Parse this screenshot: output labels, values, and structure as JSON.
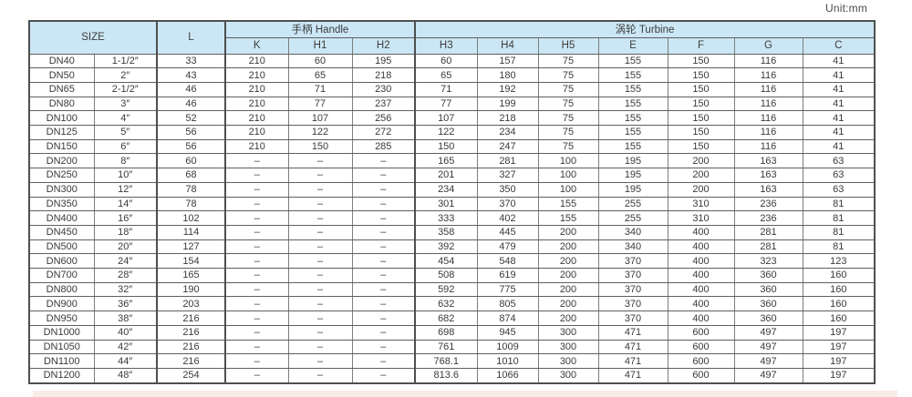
{
  "page": {
    "unit_label": "Unit:mm"
  },
  "table": {
    "header": {
      "size": "SIZE",
      "l": "L",
      "handle_group": "手柄 Handle",
      "turbine_group": "涡轮 Turbine",
      "handle_cols": [
        "K",
        "H1",
        "H2"
      ],
      "turbine_cols": [
        "H3",
        "H4",
        "H5",
        "E",
        "F",
        "G",
        "C"
      ]
    },
    "rows": [
      [
        "DN40",
        "1-1/2″",
        "33",
        "210",
        "60",
        "195",
        "60",
        "157",
        "75",
        "155",
        "150",
        "116",
        "41"
      ],
      [
        "DN50",
        "2″",
        "43",
        "210",
        "65",
        "218",
        "65",
        "180",
        "75",
        "155",
        "150",
        "116",
        "41"
      ],
      [
        "DN65",
        "2-1/2″",
        "46",
        "210",
        "71",
        "230",
        "71",
        "192",
        "75",
        "155",
        "150",
        "116",
        "41"
      ],
      [
        "DN80",
        "3″",
        "46",
        "210",
        "77",
        "237",
        "77",
        "199",
        "75",
        "155",
        "150",
        "116",
        "41"
      ],
      [
        "DN100",
        "4″",
        "52",
        "210",
        "107",
        "256",
        "107",
        "218",
        "75",
        "155",
        "150",
        "116",
        "41"
      ],
      [
        "DN125",
        "5″",
        "56",
        "210",
        "122",
        "272",
        "122",
        "234",
        "75",
        "155",
        "150",
        "116",
        "41"
      ],
      [
        "DN150",
        "6″",
        "56",
        "210",
        "150",
        "285",
        "150",
        "247",
        "75",
        "155",
        "150",
        "116",
        "41"
      ],
      [
        "DN200",
        "8″",
        "60",
        "–",
        "–",
        "–",
        "165",
        "281",
        "100",
        "195",
        "200",
        "163",
        "63"
      ],
      [
        "DN250",
        "10″",
        "68",
        "–",
        "–",
        "–",
        "201",
        "327",
        "100",
        "195",
        "200",
        "163",
        "63"
      ],
      [
        "DN300",
        "12″",
        "78",
        "–",
        "–",
        "–",
        "234",
        "350",
        "100",
        "195",
        "200",
        "163",
        "63"
      ],
      [
        "DN350",
        "14″",
        "78",
        "–",
        "–",
        "–",
        "301",
        "370",
        "155",
        "255",
        "310",
        "236",
        "81"
      ],
      [
        "DN400",
        "16″",
        "102",
        "–",
        "–",
        "–",
        "333",
        "402",
        "155",
        "255",
        "310",
        "236",
        "81"
      ],
      [
        "DN450",
        "18″",
        "114",
        "–",
        "–",
        "–",
        "358",
        "445",
        "200",
        "340",
        "400",
        "281",
        "81"
      ],
      [
        "DN500",
        "20″",
        "127",
        "–",
        "–",
        "–",
        "392",
        "479",
        "200",
        "340",
        "400",
        "281",
        "81"
      ],
      [
        "DN600",
        "24″",
        "154",
        "–",
        "–",
        "–",
        "454",
        "548",
        "200",
        "370",
        "400",
        "323",
        "123"
      ],
      [
        "DN700",
        "28″",
        "165",
        "–",
        "–",
        "–",
        "508",
        "619",
        "200",
        "370",
        "400",
        "360",
        "160"
      ],
      [
        "DN800",
        "32″",
        "190",
        "–",
        "–",
        "–",
        "592",
        "775",
        "200",
        "370",
        "400",
        "360",
        "160"
      ],
      [
        "DN900",
        "36″",
        "203",
        "–",
        "–",
        "–",
        "632",
        "805",
        "200",
        "370",
        "400",
        "360",
        "160"
      ],
      [
        "DN950",
        "38″",
        "216",
        "–",
        "–",
        "–",
        "682",
        "874",
        "200",
        "370",
        "400",
        "360",
        "160"
      ],
      [
        "DN1000",
        "40″",
        "216",
        "–",
        "–",
        "–",
        "698",
        "945",
        "300",
        "471",
        "600",
        "497",
        "197"
      ],
      [
        "DN1050",
        "42″",
        "216",
        "–",
        "–",
        "–",
        "761",
        "1009",
        "300",
        "471",
        "600",
        "497",
        "197"
      ],
      [
        "DN1100",
        "44″",
        "216",
        "–",
        "–",
        "–",
        "768.1",
        "1010",
        "300",
        "471",
        "600",
        "497",
        "197"
      ],
      [
        "DN1200",
        "48″",
        "254",
        "–",
        "–",
        "–",
        "813.6",
        "1066",
        "300",
        "471",
        "600",
        "497",
        "197"
      ]
    ]
  },
  "colors": {
    "header_bg": "#cbe7f5",
    "bottom_band": "#f8ece7",
    "border_outer": "#4f4f4f",
    "border_inner": "#7d7d7d"
  }
}
